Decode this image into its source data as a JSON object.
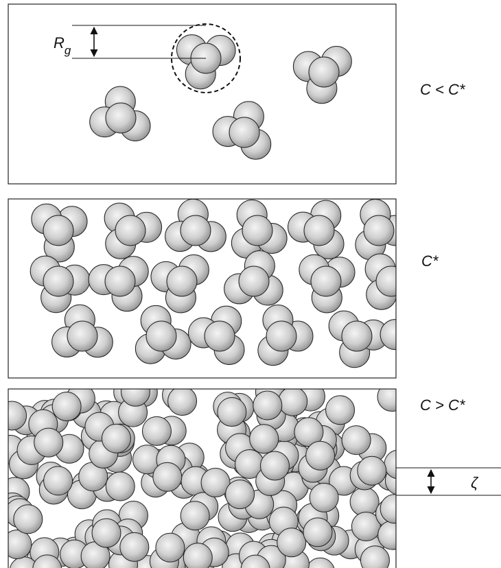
{
  "panels": [
    {
      "label": "C < C*"
    },
    {
      "label": "C*"
    },
    {
      "label": "C > C*"
    }
  ],
  "annotations": {
    "radius_label": "R",
    "radius_subscript": "g",
    "spacing_label": "ζ"
  }
}
